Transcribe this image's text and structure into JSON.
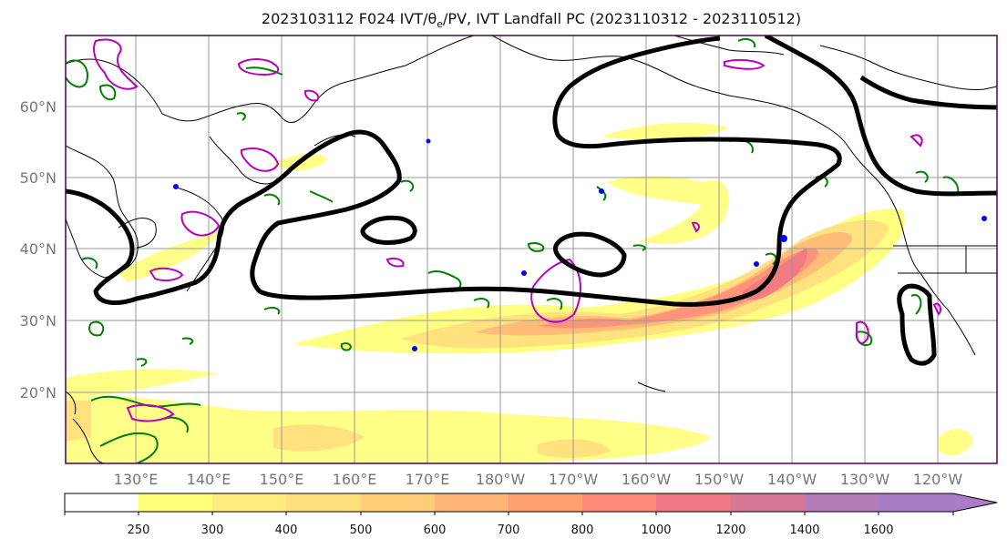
{
  "figure": {
    "title": "2023103112 F024 IVT/θ",
    "title_sub": "e",
    "title_rest": "/PV, IVT Landfall PC (2023110312 - 2023110512)"
  },
  "map": {
    "lat_labels": [
      "60°N",
      "50°N",
      "40°N",
      "30°N",
      "20°N"
    ],
    "lon_labels": [
      "130°E",
      "140°E",
      "150°E",
      "160°E",
      "170°E",
      "180°W",
      "170°W",
      "160°W",
      "150°W",
      "140°W",
      "130°W",
      "120°W"
    ],
    "lat_values": [
      60,
      50,
      40,
      30,
      20
    ],
    "lon_values": [
      130,
      140,
      150,
      160,
      170,
      180,
      190,
      200,
      210,
      220,
      230,
      240
    ],
    "colors": {
      "land_outline": "#000000",
      "pv_contour": "#000000",
      "theta_contour": "#008000",
      "negative_contour": "#0000ff",
      "landfall_contour": "#bb00bb",
      "grid": "#999999",
      "frame": "#4b0050"
    }
  },
  "colorbar": {
    "labels": [
      "250",
      "300",
      "400",
      "500",
      "600",
      "700",
      "800",
      "1000",
      "1200",
      "1400",
      "1600"
    ],
    "levels": [
      250,
      300,
      400,
      500,
      600,
      700,
      800,
      1000,
      1200,
      1400,
      1600
    ],
    "colors": [
      "#ffffff",
      "#ffff7a",
      "#ffeb7e",
      "#ffdf7c",
      "#ffcc78",
      "#ffb676",
      "#ffa070",
      "#ff8a7a",
      "#ef7884",
      "#d87894",
      "#b47cb8",
      "#a87cc6"
    ]
  }
}
